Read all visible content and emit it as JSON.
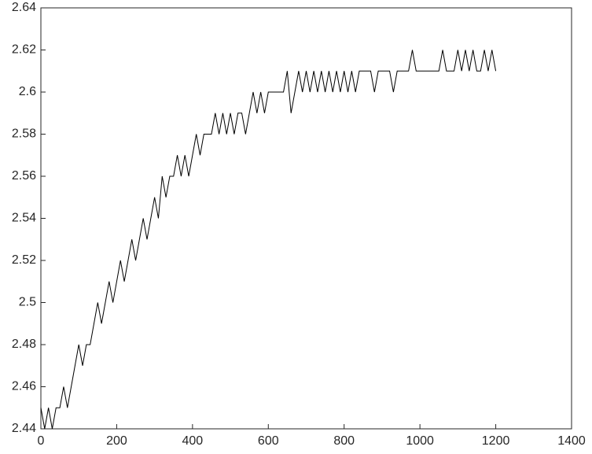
{
  "chart_data": {
    "type": "line",
    "x": [
      0,
      10,
      20,
      30,
      40,
      50,
      60,
      70,
      80,
      90,
      100,
      110,
      120,
      130,
      140,
      150,
      160,
      170,
      180,
      190,
      200,
      210,
      220,
      230,
      240,
      250,
      260,
      270,
      280,
      290,
      300,
      310,
      320,
      330,
      340,
      350,
      360,
      370,
      380,
      390,
      400,
      410,
      420,
      430,
      440,
      450,
      460,
      470,
      480,
      490,
      500,
      510,
      520,
      530,
      540,
      550,
      560,
      570,
      580,
      590,
      600,
      610,
      620,
      630,
      640,
      650,
      660,
      670,
      680,
      690,
      700,
      710,
      720,
      730,
      740,
      750,
      760,
      770,
      780,
      790,
      800,
      810,
      820,
      830,
      840,
      850,
      860,
      870,
      880,
      890,
      900,
      910,
      920,
      930,
      940,
      950,
      960,
      970,
      980,
      990,
      1000,
      1010,
      1020,
      1030,
      1040,
      1050,
      1060,
      1070,
      1080,
      1090,
      1100,
      1110,
      1120,
      1130,
      1140,
      1150,
      1160,
      1170,
      1180,
      1190,
      1200
    ],
    "series": [
      {
        "color": "#000000",
        "values": [
          2.45,
          2.44,
          2.45,
          2.44,
          2.45,
          2.45,
          2.46,
          2.45,
          2.46,
          2.47,
          2.48,
          2.47,
          2.48,
          2.48,
          2.49,
          2.5,
          2.49,
          2.5,
          2.51,
          2.5,
          2.51,
          2.52,
          2.51,
          2.52,
          2.53,
          2.52,
          2.53,
          2.54,
          2.53,
          2.54,
          2.55,
          2.54,
          2.56,
          2.55,
          2.56,
          2.56,
          2.57,
          2.56,
          2.57,
          2.56,
          2.57,
          2.58,
          2.57,
          2.58,
          2.58,
          2.58,
          2.59,
          2.58,
          2.59,
          2.58,
          2.59,
          2.58,
          2.59,
          2.59,
          2.58,
          2.59,
          2.6,
          2.59,
          2.6,
          2.59,
          2.6,
          2.6,
          2.6,
          2.6,
          2.6,
          2.61,
          2.59,
          2.6,
          2.61,
          2.6,
          2.61,
          2.6,
          2.61,
          2.6,
          2.61,
          2.6,
          2.61,
          2.6,
          2.61,
          2.6,
          2.61,
          2.6,
          2.61,
          2.6,
          2.61,
          2.61,
          2.61,
          2.61,
          2.6,
          2.61,
          2.61,
          2.61,
          2.61,
          2.6,
          2.61,
          2.61,
          2.61,
          2.61,
          2.62,
          2.61,
          2.61,
          2.61,
          2.61,
          2.61,
          2.61,
          2.61,
          2.62,
          2.61,
          2.61,
          2.61,
          2.62,
          2.61,
          2.62,
          2.61,
          2.62,
          2.61,
          2.61,
          2.62,
          2.61,
          2.62,
          2.61
        ]
      }
    ],
    "xlim": [
      0,
      1400
    ],
    "xticks": [
      0,
      200,
      400,
      600,
      800,
      1000,
      1200,
      1400
    ],
    "ylim": [
      2.44,
      2.64
    ],
    "yticks": [
      2.44,
      2.46,
      2.48,
      2.5,
      2.52,
      2.54,
      2.56,
      2.58,
      2.6,
      2.62,
      2.64
    ]
  }
}
